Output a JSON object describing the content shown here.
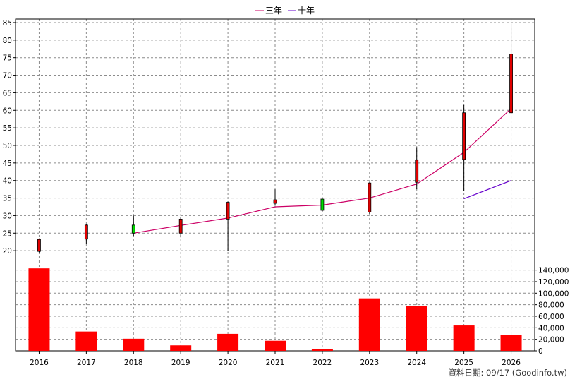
{
  "legend": {
    "items": [
      {
        "label": "三年",
        "color": "#cc0066"
      },
      {
        "label": "十年",
        "color": "#6600cc"
      }
    ]
  },
  "credit": "資料日期: 09/17  (Goodinfo.tw)",
  "chart_data": {
    "type": "candlestick+line+bar",
    "categories": [
      "2016",
      "2017",
      "2018",
      "2019",
      "2020",
      "2021",
      "2022",
      "2023",
      "2024",
      "2025",
      "2026"
    ],
    "price_axis": {
      "ylim": [
        15,
        86
      ],
      "ticks": [
        20,
        25,
        30,
        35,
        40,
        45,
        50,
        55,
        60,
        65,
        70,
        75,
        80,
        85
      ]
    },
    "candles": [
      {
        "year": "2016",
        "open": 19.8,
        "high": 23.5,
        "low": 19.5,
        "close": 23.2,
        "color": "red"
      },
      {
        "year": "2017",
        "open": 23.3,
        "high": 27.5,
        "low": 22.0,
        "close": 27.3,
        "color": "red"
      },
      {
        "year": "2018",
        "open": 27.3,
        "high": 30.0,
        "low": 24.0,
        "close": 25.0,
        "color": "green"
      },
      {
        "year": "2019",
        "open": 25.0,
        "high": 29.5,
        "low": 23.8,
        "close": 29.0,
        "color": "red"
      },
      {
        "year": "2020",
        "open": 29.0,
        "high": 34.0,
        "low": 20.0,
        "close": 33.8,
        "color": "red"
      },
      {
        "year": "2021",
        "open": 33.5,
        "high": 37.5,
        "low": 33.0,
        "close": 34.5,
        "color": "red"
      },
      {
        "year": "2022",
        "open": 34.7,
        "high": 35.0,
        "low": 31.2,
        "close": 31.5,
        "color": "green"
      },
      {
        "year": "2023",
        "open": 31.0,
        "high": 39.5,
        "low": 30.5,
        "close": 39.3,
        "color": "red"
      },
      {
        "year": "2024",
        "open": 39.5,
        "high": 49.5,
        "low": 37.5,
        "close": 45.8,
        "color": "red"
      },
      {
        "year": "2025",
        "open": 46.0,
        "high": 61.5,
        "low": 37.0,
        "close": 59.3,
        "color": "red"
      },
      {
        "year": "2026",
        "open": 59.3,
        "high": 84.5,
        "low": 59.0,
        "close": 76.0,
        "color": "red"
      }
    ],
    "series": [
      {
        "name": "三年",
        "color": "#cc0066",
        "x": [
          "2018",
          "2019",
          "2020",
          "2021",
          "2022",
          "2023",
          "2024",
          "2025",
          "2026"
        ],
        "values": [
          25.0,
          27.2,
          29.3,
          32.5,
          33.0,
          35.0,
          39.0,
          48.0,
          60.5
        ]
      },
      {
        "name": "十年",
        "color": "#6600cc",
        "x": [
          "2025",
          "2026"
        ],
        "values": [
          34.8,
          40.0
        ]
      }
    ],
    "volume": {
      "ylim": [
        0,
        142000
      ],
      "ticks": [
        0,
        20000,
        40000,
        60000,
        80000,
        100000,
        120000,
        140000
      ],
      "tick_labels": [
        "0",
        "20,000",
        "40,000",
        "60,000",
        "80,000",
        "100,000",
        "120,000",
        "140,000"
      ],
      "values": [
        143000,
        33500,
        21000,
        9500,
        29500,
        17500,
        3000,
        91000,
        78000,
        44000,
        27000
      ],
      "color": "#ff0000"
    },
    "grid": true
  }
}
